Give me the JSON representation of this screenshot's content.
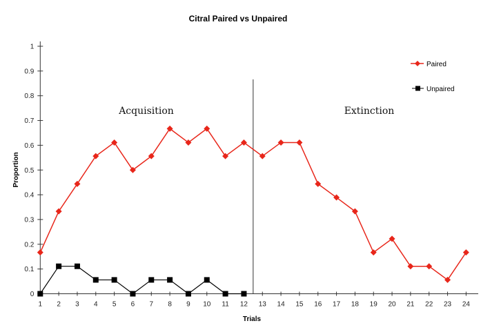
{
  "chart_data": {
    "type": "line",
    "title": "Citral Paired vs Unpaired",
    "xlabel": "Trials",
    "ylabel": "Proportion",
    "x": [
      1,
      2,
      3,
      4,
      5,
      6,
      7,
      8,
      9,
      10,
      11,
      12,
      13,
      14,
      15,
      16,
      17,
      18,
      19,
      20,
      21,
      22,
      23,
      24
    ],
    "ylim": [
      0,
      1
    ],
    "yticks": [
      "0",
      "0.1",
      "0.2",
      "0.3",
      "0.4",
      "0.5",
      "0.6",
      "0.7",
      "0.8",
      "0.9",
      "1"
    ],
    "xticks": [
      "1",
      "2",
      "3",
      "4",
      "5",
      "6",
      "7",
      "8",
      "9",
      "10",
      "11",
      "12",
      "13",
      "14",
      "15",
      "16",
      "17",
      "18",
      "19",
      "20",
      "21",
      "22",
      "23",
      "24"
    ],
    "grid": false,
    "legend_position": "top-right",
    "series": [
      {
        "name": "Paired",
        "color": "#e8261a",
        "marker": "diamond",
        "values": [
          0.167,
          0.333,
          0.444,
          0.556,
          0.611,
          0.5,
          0.556,
          0.667,
          0.611,
          0.667,
          0.556,
          0.611,
          0.556,
          0.611,
          0.611,
          0.444,
          0.389,
          0.333,
          0.167,
          0.222,
          0.111,
          0.111,
          0.056,
          0.167
        ]
      },
      {
        "name": "Unpaired",
        "color": "#000000",
        "marker": "square",
        "values": [
          0,
          0.111,
          0.111,
          0.056,
          0.056,
          0,
          0.056,
          0.056,
          0,
          0.056,
          0,
          0,
          null,
          null,
          null,
          null,
          null,
          null,
          null,
          null,
          null,
          null,
          null,
          null
        ]
      }
    ],
    "annotations": [
      {
        "text": "Acquisition"
      },
      {
        "text": "Extinction"
      }
    ],
    "divider_between_trials": [
      12,
      13
    ]
  }
}
